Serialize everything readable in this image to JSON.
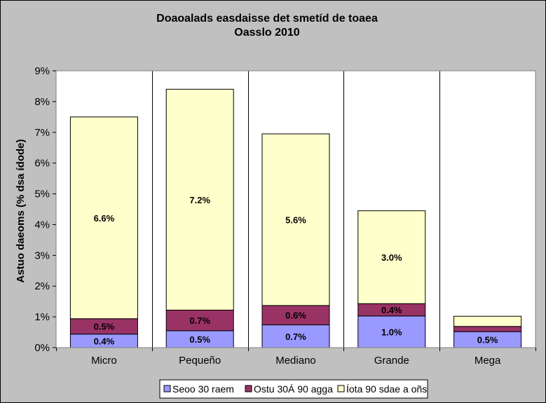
{
  "chart_data": {
    "type": "bar",
    "stacked": true,
    "title": "Doaoalads easdaisse det smetíd de toaea",
    "subtitle": "Oasslo 2010",
    "ylabel": "Astuo daeoms (% dsa ídode)",
    "xlabel": "",
    "categories": [
      "Micro",
      "Pequeño",
      "Mediano",
      "Grande",
      "Mega"
    ],
    "ylim": [
      0,
      9
    ],
    "yticks": [
      "0%",
      "1%",
      "2%",
      "3%",
      "4%",
      "5%",
      "6%",
      "7%",
      "8%",
      "9%"
    ],
    "grid": false,
    "category_separators": true,
    "legend_position": "bottom",
    "series": [
      {
        "name": "Seoo 30 raem",
        "color": "#9999ff",
        "values": [
          0.44,
          0.55,
          0.74,
          1.03,
          0.52
        ],
        "labels": [
          "0.4%",
          "0.5%",
          "0.7%",
          "1.0%",
          "0.5%"
        ]
      },
      {
        "name": "Ostu 30Á 90 agga",
        "color": "#993366",
        "values": [
          0.5,
          0.67,
          0.63,
          0.4,
          0.17
        ],
        "labels": [
          "0.5%",
          "0.7%",
          "0.6%",
          "0.4%",
          ""
        ]
      },
      {
        "name": "Íota 90 sdae a oñs",
        "color": "#ffffcc",
        "values": [
          6.56,
          7.18,
          5.58,
          3.02,
          0.33
        ],
        "labels": [
          "6.6%",
          "7.2%",
          "5.6%",
          "3.0%",
          ""
        ]
      }
    ]
  },
  "colors": {
    "chart_background": "#c0c0c0",
    "plot_background": "#ffffff"
  }
}
